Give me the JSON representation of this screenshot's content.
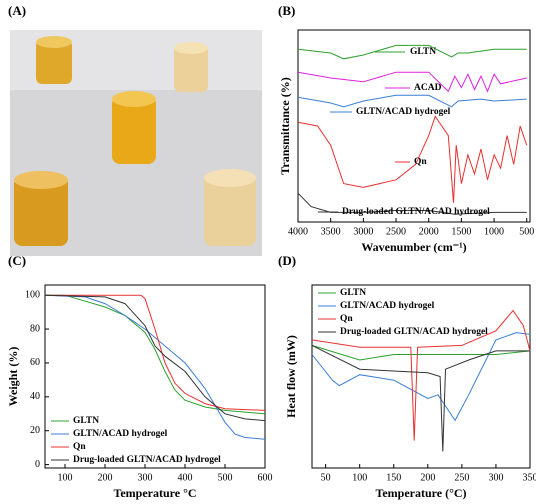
{
  "chart_data": [
    {
      "type": "image",
      "title": "(A)"
    },
    {
      "type": "line",
      "title": "(B)",
      "xlabel": "Wavenumber (cm⁻¹)",
      "ylabel": "Transmittance (%)",
      "xlim": [
        4000,
        450
      ],
      "xticks": [
        4000,
        3500,
        3000,
        2500,
        2000,
        1500,
        1000,
        500
      ],
      "ylim": [
        0,
        100
      ],
      "legend": "inline",
      "series": [
        {
          "name": "GLTN",
          "color": "#2ca02c",
          "x": [
            4000,
            3500,
            3300,
            3000,
            2500,
            2000,
            1650,
            1550,
            1400,
            1200,
            1000,
            500
          ],
          "values": [
            90,
            88,
            85,
            87,
            92,
            92,
            86,
            88,
            88,
            89,
            90,
            90
          ]
        },
        {
          "name": "ACAD",
          "color": "#e020e0",
          "x": [
            4000,
            3500,
            3000,
            2500,
            2000,
            1700,
            1600,
            1500,
            1400,
            1300,
            1200,
            1100,
            1000,
            900,
            500
          ],
          "values": [
            78,
            75,
            73,
            78,
            78,
            68,
            76,
            70,
            77,
            69,
            76,
            68,
            77,
            72,
            75
          ]
        },
        {
          "name": "GLTN/ACAD hydrogel",
          "color": "#3a7fd5",
          "x": [
            4000,
            3500,
            3300,
            3000,
            2500,
            2000,
            1650,
            1550,
            1200,
            1000,
            500
          ],
          "values": [
            65,
            62,
            60,
            63,
            66,
            66,
            60,
            63,
            64,
            63,
            64
          ]
        },
        {
          "name": "Qn",
          "color": "#e83030",
          "x": [
            4000,
            3700,
            3500,
            3300,
            3000,
            2500,
            2200,
            2000,
            1900,
            1800,
            1700,
            1620,
            1580,
            1500,
            1400,
            1300,
            1200,
            1100,
            1000,
            900,
            800,
            700,
            600,
            500
          ],
          "values": [
            52,
            50,
            40,
            20,
            18,
            22,
            30,
            45,
            55,
            50,
            45,
            10,
            40,
            20,
            35,
            25,
            38,
            22,
            35,
            28,
            45,
            30,
            50,
            40
          ]
        },
        {
          "name": "Drug-loaded GLTN/ACAD hydrogel",
          "color": "#333333",
          "x": [
            4000,
            3800,
            3500,
            3000,
            2500,
            2000,
            1600,
            1000,
            500
          ],
          "values": [
            15,
            8,
            5,
            5,
            6,
            6,
            4,
            5,
            5
          ]
        }
      ]
    },
    {
      "type": "line",
      "title": "(C)",
      "xlabel": "Temperature °C",
      "ylabel": "Weight (%)",
      "xlim": [
        50,
        600
      ],
      "xticks": [
        100,
        200,
        300,
        400,
        500,
        600
      ],
      "ylim": [
        -2,
        106
      ],
      "yticks": [
        0,
        20,
        40,
        60,
        80,
        100
      ],
      "legend": "lower left",
      "series": [
        {
          "name": "GLTN",
          "color": "#2ca02c",
          "x": [
            50,
            100,
            200,
            250,
            300,
            325,
            350,
            375,
            400,
            450,
            500,
            550,
            600
          ],
          "values": [
            100,
            100,
            93,
            88,
            78,
            68,
            55,
            44,
            38,
            34,
            32,
            31,
            30
          ]
        },
        {
          "name": "GLTN/ACAD hydrogel",
          "color": "#3a7fd5",
          "x": [
            50,
            150,
            200,
            250,
            300,
            350,
            400,
            450,
            500,
            525,
            550,
            600
          ],
          "values": [
            100,
            99,
            95,
            88,
            80,
            70,
            60,
            45,
            25,
            18,
            16,
            15
          ]
        },
        {
          "name": "Qn",
          "color": "#e83030",
          "x": [
            50,
            290,
            300,
            325,
            350,
            375,
            400,
            450,
            500,
            600
          ],
          "values": [
            100,
            100,
            98,
            80,
            60,
            48,
            42,
            36,
            33,
            32
          ]
        },
        {
          "name": "Drug-loaded GLTN/ACAD hydrogel",
          "color": "#333333",
          "x": [
            50,
            200,
            250,
            300,
            325,
            350,
            400,
            450,
            500,
            550,
            600
          ],
          "values": [
            100,
            99,
            95,
            82,
            70,
            64,
            55,
            40,
            30,
            27,
            26
          ]
        }
      ]
    },
    {
      "type": "line",
      "title": "(D)",
      "xlabel": "Temperature (°C)",
      "ylabel": "Heat flow (mW)",
      "xlim": [
        30,
        350
      ],
      "xticks": [
        50,
        100,
        150,
        200,
        250,
        300,
        350
      ],
      "ylim": [
        0,
        100
      ],
      "legend": "upper left",
      "series": [
        {
          "name": "GLTN",
          "color": "#2ca02c",
          "x": [
            30,
            100,
            150,
            200,
            250,
            300,
            350
          ],
          "values": [
            67,
            59,
            62,
            62,
            62,
            62,
            64
          ]
        },
        {
          "name": "GLTN/ACAD hydrogel",
          "color": "#3a7fd5",
          "x": [
            30,
            60,
            70,
            100,
            150,
            200,
            215,
            240,
            260,
            300,
            330,
            350
          ],
          "values": [
            62,
            48,
            45,
            51,
            48,
            38,
            40,
            26,
            40,
            70,
            74,
            73
          ]
        },
        {
          "name": "Qn",
          "color": "#e83030",
          "x": [
            30,
            100,
            175,
            180,
            185,
            250,
            300,
            325,
            340,
            350
          ],
          "values": [
            70,
            66,
            66,
            15,
            66,
            67,
            75,
            86,
            78,
            64
          ]
        },
        {
          "name": "Drug-loaded GLTN/ACAD hydrogel",
          "color": "#333333",
          "x": [
            30,
            100,
            200,
            218,
            222,
            226,
            260,
            300,
            350
          ],
          "values": [
            67,
            54,
            52,
            50,
            9,
            54,
            59,
            64,
            64
          ]
        }
      ]
    }
  ]
}
